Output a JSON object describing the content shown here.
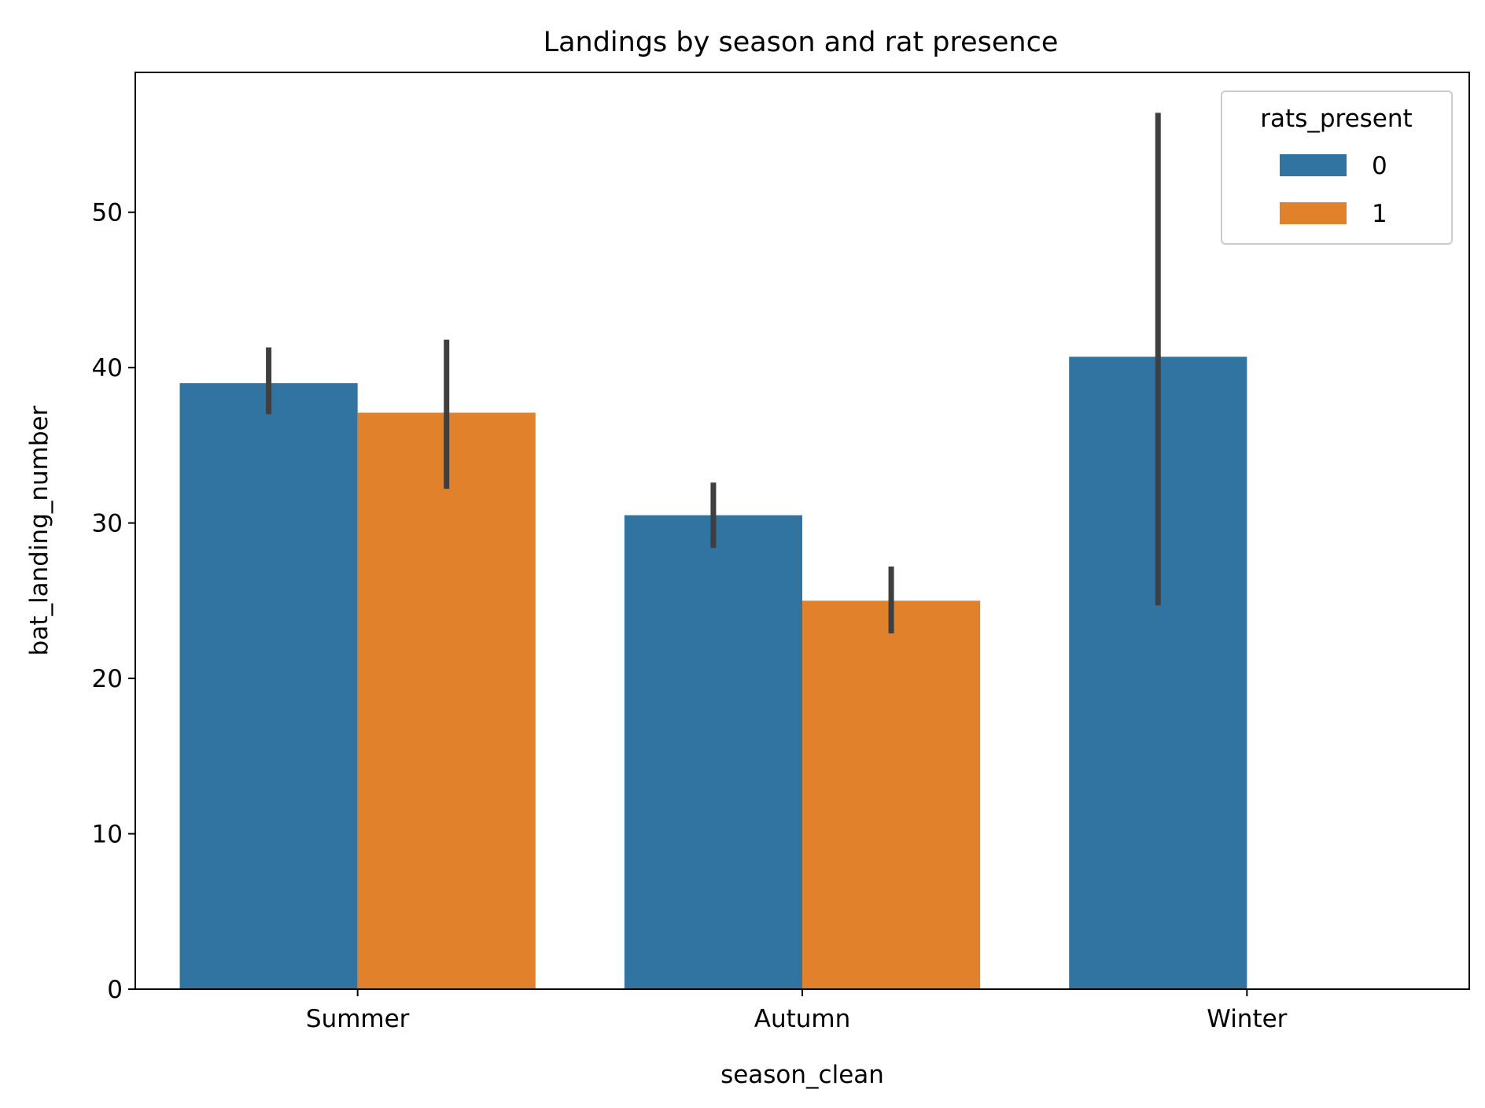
{
  "chart_data": {
    "type": "bar",
    "title": "Landings by season and rat presence",
    "xlabel": "season_clean",
    "ylabel": "bat_landing_number",
    "categories": [
      "Summer",
      "Autumn",
      "Winter"
    ],
    "ylim": [
      0,
      59
    ],
    "yticks": [
      0,
      10,
      20,
      30,
      40,
      50
    ],
    "grid": false,
    "legend": {
      "title": "rats_present",
      "placement": "top-right"
    },
    "series": [
      {
        "name": "0",
        "color": "#3274a1",
        "values": [
          39.0,
          30.5,
          40.7
        ],
        "error": [
          [
            37.0,
            41.3
          ],
          [
            28.4,
            32.6
          ],
          [
            24.7,
            56.4
          ]
        ]
      },
      {
        "name": "1",
        "color": "#e1812c",
        "values": [
          37.1,
          25.0,
          null
        ],
        "error": [
          [
            32.2,
            41.8
          ],
          [
            22.9,
            27.2
          ],
          null
        ]
      }
    ],
    "errorbar_color": "#3f3f3f"
  }
}
